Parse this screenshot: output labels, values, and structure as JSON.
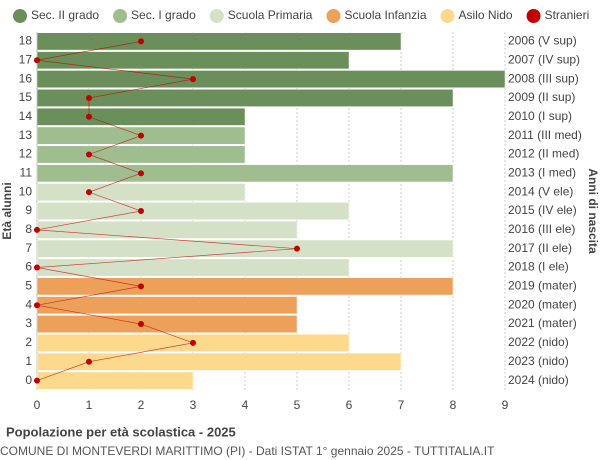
{
  "chart_data": {
    "type": "bar",
    "orientation": "horizontal",
    "title": "Popolazione per età scolastica - 2025",
    "subtitle": "COMUNE DI MONTEVERDI MARITTIMO (PI) - Dati ISTAT 1° gennaio 2025 - TUTTITALIA.IT",
    "y_label": "Età alunni",
    "y2_label": "Anni di nascita",
    "categories": [
      "18",
      "17",
      "16",
      "15",
      "14",
      "13",
      "12",
      "11",
      "10",
      "9",
      "8",
      "7",
      "6",
      "5",
      "4",
      "3",
      "2",
      "1",
      "0"
    ],
    "y2_categories": [
      "2006 (V sup)",
      "2007 (IV sup)",
      "2008 (III sup)",
      "2009 (II sup)",
      "2010 (I sup)",
      "2011 (III med)",
      "2012 (II med)",
      "2013 (I med)",
      "2014 (V ele)",
      "2015 (IV ele)",
      "2016 (III ele)",
      "2017 (II ele)",
      "2018 (I ele)",
      "2019 (mater)",
      "2020 (mater)",
      "2021 (mater)",
      "2022 (nido)",
      "2023 (nido)",
      "2024 (nido)"
    ],
    "series": [
      {
        "name": "Sec. II grado",
        "color": "#6b8f5a",
        "values": [
          7,
          6,
          9,
          8,
          4,
          null,
          null,
          null,
          null,
          null,
          null,
          null,
          null,
          null,
          null,
          null,
          null,
          null,
          null
        ]
      },
      {
        "name": "Sec. I grado",
        "color": "#a0bd90",
        "values": [
          null,
          null,
          null,
          null,
          null,
          4,
          4,
          8,
          null,
          null,
          null,
          null,
          null,
          null,
          null,
          null,
          null,
          null,
          null
        ]
      },
      {
        "name": "Scuola Primaria",
        "color": "#d4e1c7",
        "values": [
          null,
          null,
          null,
          null,
          null,
          null,
          null,
          null,
          4,
          6,
          5,
          8,
          6,
          null,
          null,
          null,
          null,
          null,
          null
        ]
      },
      {
        "name": "Scuola Infanzia",
        "color": "#eda05a",
        "values": [
          null,
          null,
          null,
          null,
          null,
          null,
          null,
          null,
          null,
          null,
          null,
          null,
          null,
          8,
          5,
          5,
          null,
          null,
          null
        ]
      },
      {
        "name": "Asilo Nido",
        "color": "#fdd98e",
        "values": [
          null,
          null,
          null,
          null,
          null,
          null,
          null,
          null,
          null,
          null,
          null,
          null,
          null,
          null,
          null,
          null,
          6,
          7,
          3
        ]
      },
      {
        "name": "Stranieri",
        "color": "#c00000",
        "type": "line",
        "values": [
          2,
          0,
          3,
          1,
          1,
          2,
          1,
          2,
          1,
          2,
          0,
          5,
          0,
          2,
          0,
          2,
          3,
          1,
          0
        ]
      }
    ],
    "xlim": [
      0,
      9
    ],
    "xticks": [
      0,
      1,
      2,
      3,
      4,
      5,
      6,
      7,
      8,
      9
    ],
    "grid": true,
    "legend": "top"
  }
}
